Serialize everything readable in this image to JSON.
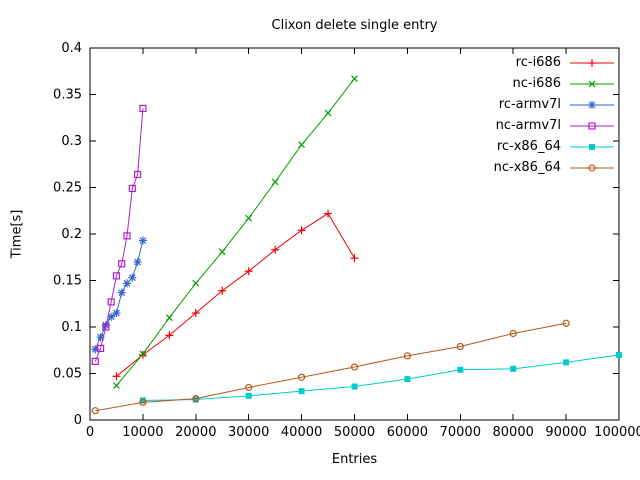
{
  "chart_data": {
    "type": "line",
    "title": "Clixon delete single entry",
    "xlabel": "Entries",
    "ylabel": "Time[s]",
    "xlim": [
      0,
      100000
    ],
    "ylim": [
      0,
      0.4
    ],
    "grid": false,
    "legend_position": "top-right-inside",
    "xticks": [
      0,
      10000,
      20000,
      30000,
      40000,
      50000,
      60000,
      70000,
      80000,
      90000,
      100000
    ],
    "xtick_labels": [
      "0",
      "10000",
      "20000",
      "30000",
      "40000",
      "50000",
      "60000",
      "70000",
      "80000",
      "90000",
      "100000"
    ],
    "yticks": [
      0,
      0.05,
      0.1,
      0.15,
      0.2,
      0.25,
      0.3,
      0.35,
      0.4
    ],
    "ytick_labels": [
      "0",
      "0.05",
      "0.1",
      "0.15",
      "0.2",
      "0.25",
      "0.3",
      "0.35",
      "0.4"
    ],
    "axis_color": "#000000",
    "series": [
      {
        "name": "rc-i686",
        "color": "#ee0000",
        "marker": "plus",
        "x": [
          5000,
          10000,
          15000,
          20000,
          25000,
          30000,
          35000,
          40000,
          45000,
          50000
        ],
        "y": [
          0.047,
          0.07,
          0.091,
          0.115,
          0.139,
          0.16,
          0.183,
          0.204,
          0.222,
          0.174
        ]
      },
      {
        "name": "nc-i686",
        "color": "#00a000",
        "marker": "cross",
        "x": [
          5000,
          10000,
          15000,
          20000,
          25000,
          30000,
          35000,
          40000,
          45000,
          50000
        ],
        "y": [
          0.037,
          0.071,
          0.11,
          0.147,
          0.181,
          0.217,
          0.256,
          0.296,
          0.33,
          0.367
        ]
      },
      {
        "name": "rc-armv7l",
        "color": "#3366cc",
        "marker": "asterisk",
        "x": [
          1000,
          2000,
          3000,
          4000,
          5000,
          6000,
          7000,
          8000,
          9000,
          10000
        ],
        "y": [
          0.076,
          0.089,
          0.102,
          0.111,
          0.115,
          0.137,
          0.147,
          0.153,
          0.17,
          0.193
        ]
      },
      {
        "name": "nc-armv7l",
        "color": "#aa22cc",
        "marker": "square-open",
        "x": [
          1000,
          2000,
          3000,
          4000,
          5000,
          6000,
          7000,
          8000,
          9000,
          10000
        ],
        "y": [
          0.063,
          0.077,
          0.1,
          0.127,
          0.155,
          0.168,
          0.198,
          0.249,
          0.264,
          0.335
        ]
      },
      {
        "name": "rc-x86_64",
        "color": "#00cccc",
        "marker": "square-filled",
        "x": [
          10000,
          20000,
          30000,
          40000,
          50000,
          60000,
          70000,
          80000,
          90000,
          100000
        ],
        "y": [
          0.021,
          0.022,
          0.026,
          0.031,
          0.036,
          0.044,
          0.054,
          0.055,
          0.062,
          0.07
        ]
      },
      {
        "name": "nc-x86_64",
        "color": "#b5581c",
        "marker": "circle-open",
        "x": [
          1000,
          10000,
          20000,
          30000,
          40000,
          50000,
          60000,
          70000,
          80000,
          90000
        ],
        "y": [
          0.01,
          0.019,
          0.023,
          0.035,
          0.046,
          0.057,
          0.069,
          0.079,
          0.093,
          0.104
        ]
      }
    ]
  }
}
